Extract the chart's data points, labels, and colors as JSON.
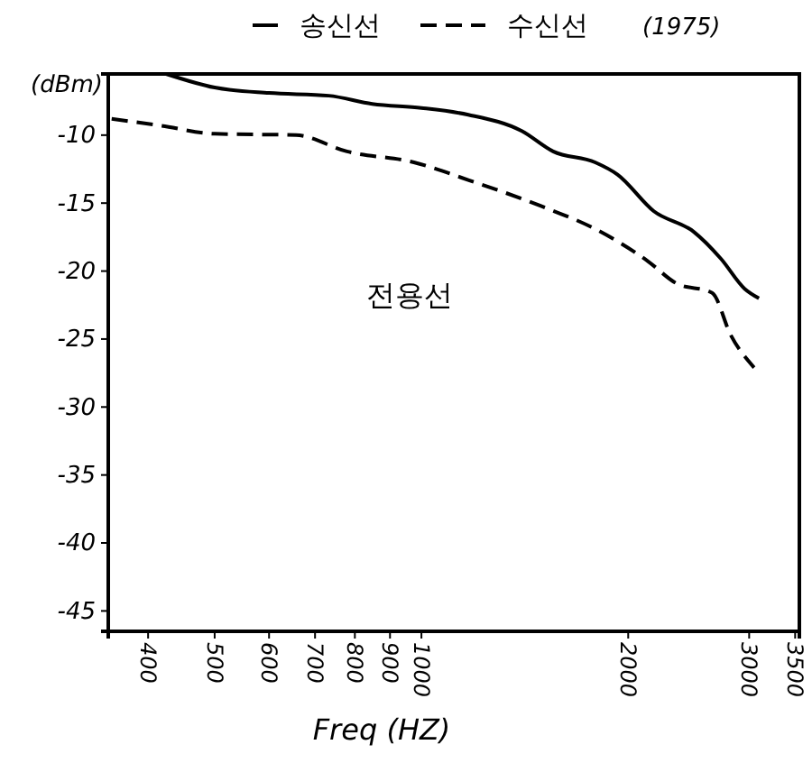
{
  "chart_data": {
    "type": "line",
    "xlabel": "Freq (HZ)",
    "ylabel": "(dBm)",
    "log": "x",
    "grid": false,
    "legend": "top",
    "marker": "none",
    "annotations": [
      "(1975)",
      "전용선"
    ],
    "xlim": [
      350,
      3550
    ],
    "xticks": [
      400,
      500,
      600,
      700,
      800,
      900,
      1000,
      2000,
      3000,
      3500
    ],
    "ylim": [
      -46.5,
      -5.5
    ],
    "yticks": [
      -10,
      -15,
      -20,
      -25,
      -30,
      -35,
      -40,
      -45
    ],
    "series": [
      {
        "name": "송신선",
        "color": "#000000",
        "line_style": "solid",
        "x": [
          425,
          500,
          600,
          733,
          848,
          1000,
          1170,
          1400,
          1555,
          1790,
          1930,
          2180,
          2490,
          2730,
          2955,
          3100
        ],
        "values": [
          -5.5,
          -6.5,
          -6.9,
          -7.1,
          -7.7,
          -8.0,
          -8.5,
          -9.7,
          -11.2,
          -12.0,
          -12.9,
          -15.6,
          -17.1,
          -19.1,
          -21.3,
          -22.0
        ]
      },
      {
        "name": "수신선",
        "color": "#000000",
        "line_style": "dashed",
        "x": [
          354,
          417,
          500,
          657,
          779,
          975,
          1170,
          1490,
          1790,
          2140,
          2350,
          2650,
          2820,
          3050
        ],
        "values": [
          -8.8,
          -9.3,
          -9.9,
          -10.0,
          -11.2,
          -12.0,
          -13.3,
          -15.2,
          -16.9,
          -19.3,
          -20.9,
          -21.6,
          -24.7,
          -27.1
        ]
      }
    ]
  }
}
